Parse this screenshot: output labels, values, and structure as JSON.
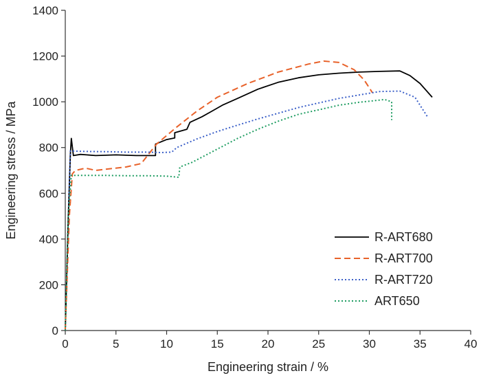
{
  "chart_data": {
    "type": "line",
    "title": "",
    "xlabel": "Engineering strain / %",
    "ylabel": "Engineering stress / MPa",
    "xlim": [
      0,
      40
    ],
    "ylim": [
      0,
      1400
    ],
    "xticks": [
      0,
      5,
      10,
      15,
      20,
      25,
      30,
      35,
      40
    ],
    "yticks": [
      0,
      200,
      400,
      600,
      800,
      1000,
      1200,
      1400
    ],
    "grid": false,
    "legend_position": "bottom-right",
    "series": [
      {
        "name": "R-ART680",
        "color": "#000000",
        "style": "solid",
        "x": [
          0,
          0.3,
          0.5,
          0.6,
          0.8,
          1.5,
          3,
          5,
          7,
          8.9,
          8.9,
          10,
          10.8,
          10.8,
          12,
          12.3,
          13.5,
          14.5,
          15.5,
          17,
          19,
          21,
          23,
          25,
          27,
          29,
          31,
          33,
          34,
          35,
          36.2
        ],
        "y": [
          0,
          500,
          770,
          840,
          765,
          770,
          765,
          768,
          765,
          765,
          815,
          835,
          842,
          865,
          880,
          910,
          935,
          960,
          985,
          1015,
          1055,
          1085,
          1105,
          1118,
          1125,
          1130,
          1133,
          1135,
          1115,
          1080,
          1020
        ]
      },
      {
        "name": "R-ART700",
        "color": "#e8622a",
        "style": "dashed",
        "x": [
          0,
          0.4,
          0.7,
          1.0,
          2.0,
          3.0,
          4.0,
          6.0,
          7.5,
          9.0,
          11,
          13,
          15,
          18,
          21,
          24,
          25.5,
          27,
          28.5,
          29.5,
          30.3
        ],
        "y": [
          0,
          500,
          685,
          700,
          710,
          700,
          705,
          715,
          730,
          815,
          890,
          960,
          1020,
          1080,
          1130,
          1165,
          1178,
          1172,
          1140,
          1095,
          1040
        ]
      },
      {
        "name": "R-ART720",
        "color": "#3a5fc8",
        "style": "dotted",
        "x": [
          0,
          0.3,
          0.5,
          2,
          4,
          6,
          8,
          9.5,
          10.5,
          11,
          13,
          15,
          17,
          19,
          21,
          23,
          25,
          27,
          29,
          31,
          33,
          34.5,
          35.8
        ],
        "y": [
          0,
          500,
          785,
          783,
          782,
          780,
          780,
          778,
          780,
          800,
          838,
          870,
          898,
          925,
          950,
          975,
          995,
          1015,
          1030,
          1045,
          1047,
          1020,
          930
        ]
      },
      {
        "name": "ART650",
        "color": "#1c9c60",
        "style": "dotted",
        "x": [
          0,
          0.3,
          0.6,
          2,
          4,
          6,
          8,
          10,
          11.2,
          11.3,
          12.5,
          14,
          15.5,
          17,
          19,
          21,
          23,
          25,
          27,
          29,
          30.5,
          31.5,
          32.2,
          32.2
        ],
        "y": [
          0,
          500,
          678,
          678,
          678,
          677,
          677,
          675,
          670,
          715,
          735,
          770,
          805,
          840,
          880,
          915,
          945,
          965,
          985,
          998,
          1005,
          1010,
          1000,
          920
        ]
      }
    ]
  }
}
